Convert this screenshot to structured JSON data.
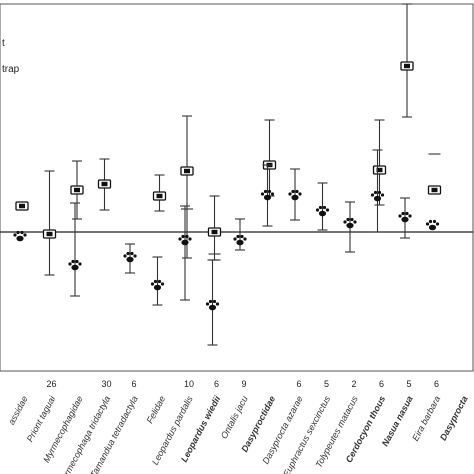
{
  "chart_data": {
    "type": "scatter",
    "title": "",
    "xlabel": "",
    "ylabel": "",
    "ylim": [
      0,
      460
    ],
    "baseline": 228,
    "grid": false,
    "legend_position": "top-left",
    "legend": [
      "t",
      "trap"
    ],
    "categories": [
      {
        "label": "assidae",
        "n": "",
        "bold": false
      },
      {
        "label": "Priont taguai",
        "n": "26",
        "bold": false
      },
      {
        "label": "Myrmecophagidae",
        "n": "",
        "bold": false
      },
      {
        "label": "Myrmecophaga tridactyla",
        "n": "30",
        "bold": false
      },
      {
        "label": "Tamandua tetradactyla",
        "n": "6",
        "bold": false
      },
      {
        "label": "Felidae",
        "n": "",
        "bold": false
      },
      {
        "label": "Leopardus pardalis",
        "n": "10",
        "bold": false
      },
      {
        "label": "Leopardus wiedii",
        "n": "6",
        "bold": true
      },
      {
        "label": "Ontalis jacu",
        "n": "9",
        "bold": false
      },
      {
        "label": "Dasyproctidae",
        "n": "",
        "bold": true
      },
      {
        "label": "Dasyprocta azarae",
        "n": "6",
        "bold": false
      },
      {
        "label": "Euphractus sexcinctus",
        "n": "5",
        "bold": false
      },
      {
        "label": "Tolypeutes matacus",
        "n": "2",
        "bold": false
      },
      {
        "label": "Cerdocyon thous",
        "n": "6",
        "bold": true
      },
      {
        "label": "Nasua nasua",
        "n": "5",
        "bold": true
      },
      {
        "label": "Eira barbara",
        "n": "6",
        "bold": false
      },
      {
        "label": "Dasyprocta",
        "n": "",
        "bold": true
      }
    ],
    "series": [
      {
        "name": "camera",
        "marker": "camera",
        "points": [
          {
            "x": 0,
            "y": 254,
            "lo": 254,
            "hi": 254
          },
          {
            "x": 1,
            "y": 226,
            "lo": 185,
            "hi": 289
          },
          {
            "x": 2,
            "y": 270,
            "lo": 241,
            "hi": 299
          },
          {
            "x": 3,
            "y": 276,
            "lo": 250,
            "hi": 301
          },
          {
            "x": 5,
            "y": 264,
            "lo": 249,
            "hi": 285
          },
          {
            "x": 6,
            "y": 289,
            "lo": 202,
            "hi": 344
          },
          {
            "x": 7,
            "y": 228,
            "lo": 200,
            "hi": 264
          },
          {
            "x": 9,
            "y": 295,
            "lo": 264,
            "hi": 340
          },
          {
            "x": 13,
            "y": 290,
            "lo": 255,
            "hi": 340
          },
          {
            "x": 14,
            "y": 394,
            "lo": 343,
            "hi": 456
          },
          {
            "x": 15,
            "y": 270,
            "lo": 270,
            "hi": 270
          }
        ]
      },
      {
        "name": "trap",
        "marker": "paw",
        "points": [
          {
            "x": 0,
            "y": 223,
            "lo": 223,
            "hi": 223
          },
          {
            "x": 2,
            "y": 194,
            "lo": 164,
            "hi": 257
          },
          {
            "x": 4,
            "y": 202,
            "lo": 187,
            "hi": 216
          },
          {
            "x": 5,
            "y": 174,
            "lo": 155,
            "hi": 203
          },
          {
            "x": 6,
            "y": 219,
            "lo": 160,
            "hi": 254
          },
          {
            "x": 7,
            "y": 154,
            "lo": 115,
            "hi": 200
          },
          {
            "x": 8,
            "y": 219,
            "lo": 210,
            "hi": 241
          },
          {
            "x": 9,
            "y": 264,
            "lo": 234,
            "hi": 295
          },
          {
            "x": 10,
            "y": 264,
            "lo": 240,
            "hi": 291
          },
          {
            "x": 11,
            "y": 248,
            "lo": 230,
            "hi": 277
          },
          {
            "x": 12,
            "y": 236,
            "lo": 208,
            "hi": 258
          },
          {
            "x": 13,
            "y": 263,
            "lo": 228,
            "hi": 310
          },
          {
            "x": 14,
            "y": 242,
            "lo": 222,
            "hi": 262
          },
          {
            "x": 15,
            "y": 234,
            "lo": 234,
            "hi": 234
          }
        ]
      }
    ],
    "extra_marks": [
      {
        "x": 6,
        "y": 251,
        "kind": "tick"
      },
      {
        "x": 7,
        "y": 200,
        "kind": "tick"
      },
      {
        "x": 7,
        "y": 206,
        "kind": "tick"
      },
      {
        "x": 15,
        "y": 306,
        "kind": "tick"
      }
    ]
  }
}
